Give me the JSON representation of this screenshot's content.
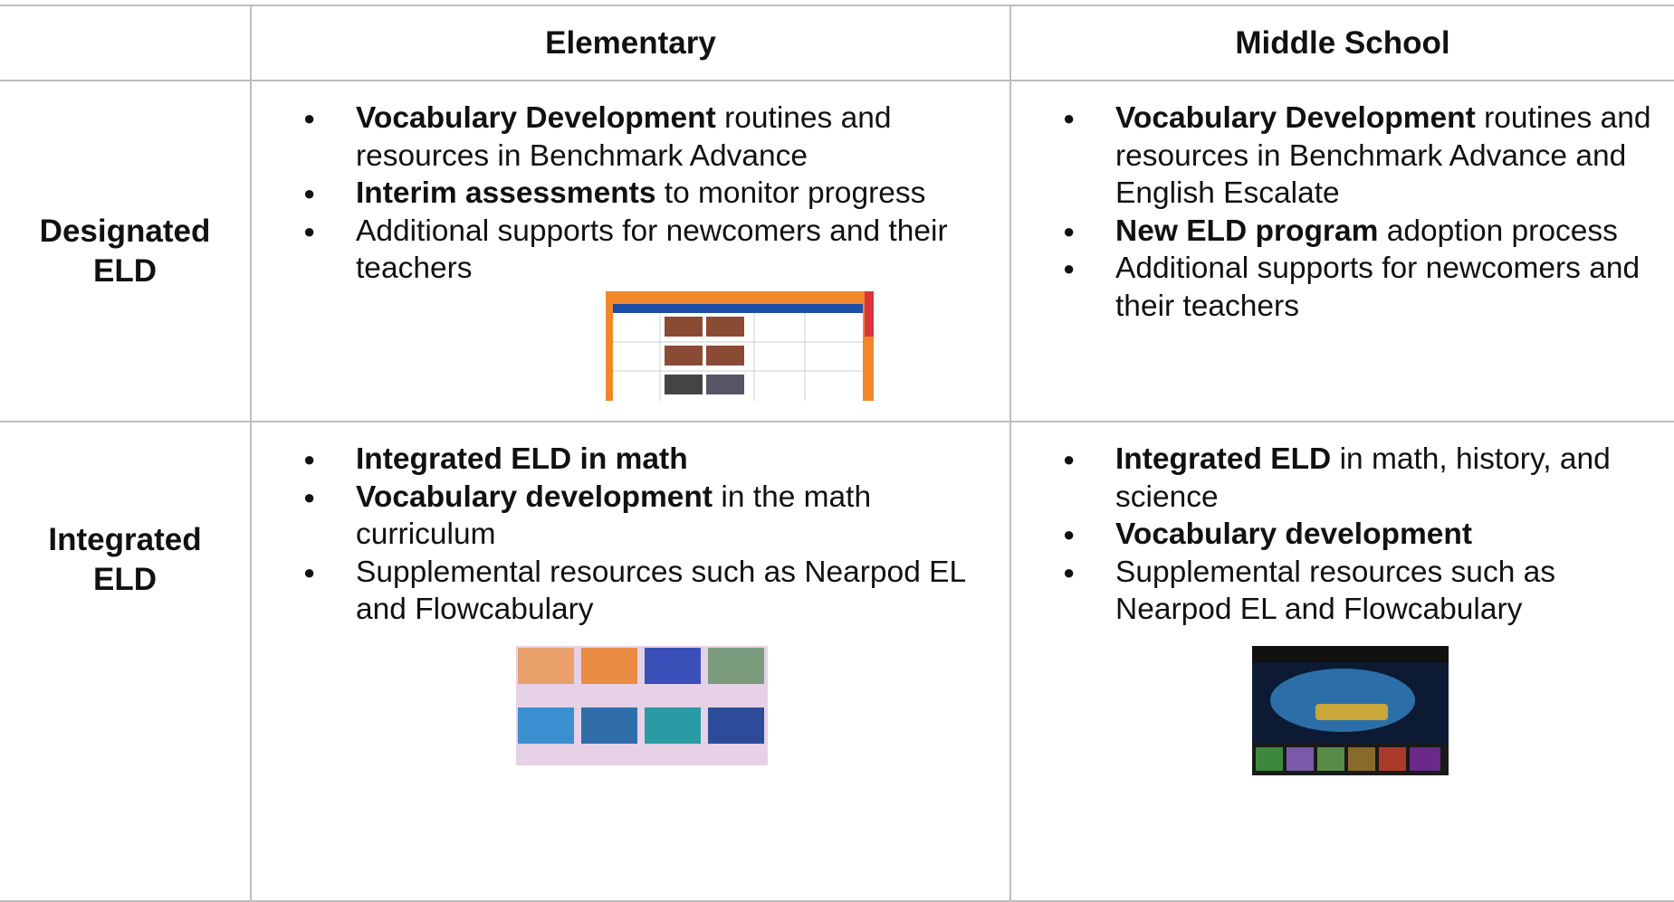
{
  "table": {
    "header": [
      "Elementary",
      "Middle School"
    ],
    "rows": [
      {
        "label": "Designated ELD",
        "cells": [
          [
            {
              "bold": "Vocabulary Development",
              "text": "routines and resources in Benchmark Advance"
            },
            {
              "bold": "Interim assessments",
              "text": "to monitor progress"
            },
            {
              "text": "Additional supports for newcomers and their teachers"
            }
          ],
          [
            {
              "bold": "Vocabulary Development",
              "text": "routines and resources in Benchmark Advance and English Escalate"
            },
            {
              "bold": "New ELD program",
              "text": "adoption process"
            },
            {
              "text": "Additional supports for newcomers and their teachers"
            }
          ]
        ]
      },
      {
        "label": "Integrated ELD",
        "cells": [
          [
            {
              "bold": "Integrated ELD in math"
            },
            {
              "bold": "Vocabulary development",
              "text": "in the math curriculum"
            },
            {
              "text": "Supplemental resources such as Nearpod EL and Flowcabulary"
            }
          ],
          [
            {
              "bold": "Integrated ELD",
              "text": "in math, history, and science"
            },
            {
              "bold": "Vocabulary development"
            },
            {
              "text": "Supplemental resources such as Nearpod EL and Flowcabulary"
            }
          ]
        ]
      }
    ]
  }
}
